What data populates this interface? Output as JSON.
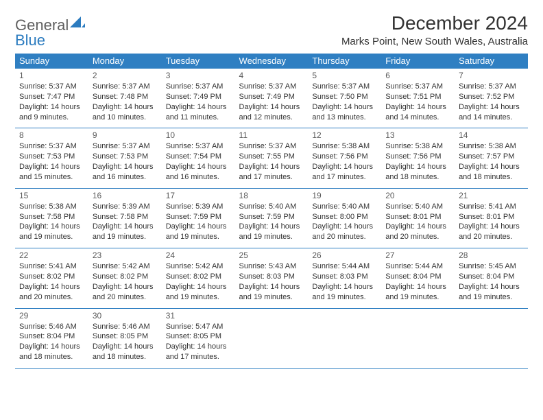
{
  "brand": {
    "part1": "General",
    "part2": "Blue"
  },
  "title": "December 2024",
  "location": "Marks Point, New South Wales, Australia",
  "colors": {
    "header_bg": "#2f7fc2",
    "header_fg": "#ffffff",
    "border": "#2f7fc2",
    "text": "#333333",
    "brand_gray": "#606060",
    "brand_blue": "#2b7bbf",
    "background": "#ffffff"
  },
  "day_headers": [
    "Sunday",
    "Monday",
    "Tuesday",
    "Wednesday",
    "Thursday",
    "Friday",
    "Saturday"
  ],
  "weeks": [
    [
      {
        "d": "1",
        "sr": "5:37 AM",
        "ss": "7:47 PM",
        "dl": "14 hours and 9 minutes."
      },
      {
        "d": "2",
        "sr": "5:37 AM",
        "ss": "7:48 PM",
        "dl": "14 hours and 10 minutes."
      },
      {
        "d": "3",
        "sr": "5:37 AM",
        "ss": "7:49 PM",
        "dl": "14 hours and 11 minutes."
      },
      {
        "d": "4",
        "sr": "5:37 AM",
        "ss": "7:49 PM",
        "dl": "14 hours and 12 minutes."
      },
      {
        "d": "5",
        "sr": "5:37 AM",
        "ss": "7:50 PM",
        "dl": "14 hours and 13 minutes."
      },
      {
        "d": "6",
        "sr": "5:37 AM",
        "ss": "7:51 PM",
        "dl": "14 hours and 14 minutes."
      },
      {
        "d": "7",
        "sr": "5:37 AM",
        "ss": "7:52 PM",
        "dl": "14 hours and 14 minutes."
      }
    ],
    [
      {
        "d": "8",
        "sr": "5:37 AM",
        "ss": "7:53 PM",
        "dl": "14 hours and 15 minutes."
      },
      {
        "d": "9",
        "sr": "5:37 AM",
        "ss": "7:53 PM",
        "dl": "14 hours and 16 minutes."
      },
      {
        "d": "10",
        "sr": "5:37 AM",
        "ss": "7:54 PM",
        "dl": "14 hours and 16 minutes."
      },
      {
        "d": "11",
        "sr": "5:37 AM",
        "ss": "7:55 PM",
        "dl": "14 hours and 17 minutes."
      },
      {
        "d": "12",
        "sr": "5:38 AM",
        "ss": "7:56 PM",
        "dl": "14 hours and 17 minutes."
      },
      {
        "d": "13",
        "sr": "5:38 AM",
        "ss": "7:56 PM",
        "dl": "14 hours and 18 minutes."
      },
      {
        "d": "14",
        "sr": "5:38 AM",
        "ss": "7:57 PM",
        "dl": "14 hours and 18 minutes."
      }
    ],
    [
      {
        "d": "15",
        "sr": "5:38 AM",
        "ss": "7:58 PM",
        "dl": "14 hours and 19 minutes."
      },
      {
        "d": "16",
        "sr": "5:39 AM",
        "ss": "7:58 PM",
        "dl": "14 hours and 19 minutes."
      },
      {
        "d": "17",
        "sr": "5:39 AM",
        "ss": "7:59 PM",
        "dl": "14 hours and 19 minutes."
      },
      {
        "d": "18",
        "sr": "5:40 AM",
        "ss": "7:59 PM",
        "dl": "14 hours and 19 minutes."
      },
      {
        "d": "19",
        "sr": "5:40 AM",
        "ss": "8:00 PM",
        "dl": "14 hours and 20 minutes."
      },
      {
        "d": "20",
        "sr": "5:40 AM",
        "ss": "8:01 PM",
        "dl": "14 hours and 20 minutes."
      },
      {
        "d": "21",
        "sr": "5:41 AM",
        "ss": "8:01 PM",
        "dl": "14 hours and 20 minutes."
      }
    ],
    [
      {
        "d": "22",
        "sr": "5:41 AM",
        "ss": "8:02 PM",
        "dl": "14 hours and 20 minutes."
      },
      {
        "d": "23",
        "sr": "5:42 AM",
        "ss": "8:02 PM",
        "dl": "14 hours and 20 minutes."
      },
      {
        "d": "24",
        "sr": "5:42 AM",
        "ss": "8:02 PM",
        "dl": "14 hours and 19 minutes."
      },
      {
        "d": "25",
        "sr": "5:43 AM",
        "ss": "8:03 PM",
        "dl": "14 hours and 19 minutes."
      },
      {
        "d": "26",
        "sr": "5:44 AM",
        "ss": "8:03 PM",
        "dl": "14 hours and 19 minutes."
      },
      {
        "d": "27",
        "sr": "5:44 AM",
        "ss": "8:04 PM",
        "dl": "14 hours and 19 minutes."
      },
      {
        "d": "28",
        "sr": "5:45 AM",
        "ss": "8:04 PM",
        "dl": "14 hours and 19 minutes."
      }
    ],
    [
      {
        "d": "29",
        "sr": "5:46 AM",
        "ss": "8:04 PM",
        "dl": "14 hours and 18 minutes."
      },
      {
        "d": "30",
        "sr": "5:46 AM",
        "ss": "8:05 PM",
        "dl": "14 hours and 18 minutes."
      },
      {
        "d": "31",
        "sr": "5:47 AM",
        "ss": "8:05 PM",
        "dl": "14 hours and 17 minutes."
      },
      null,
      null,
      null,
      null
    ]
  ],
  "labels": {
    "sunrise": "Sunrise:",
    "sunset": "Sunset:",
    "daylight": "Daylight:"
  }
}
